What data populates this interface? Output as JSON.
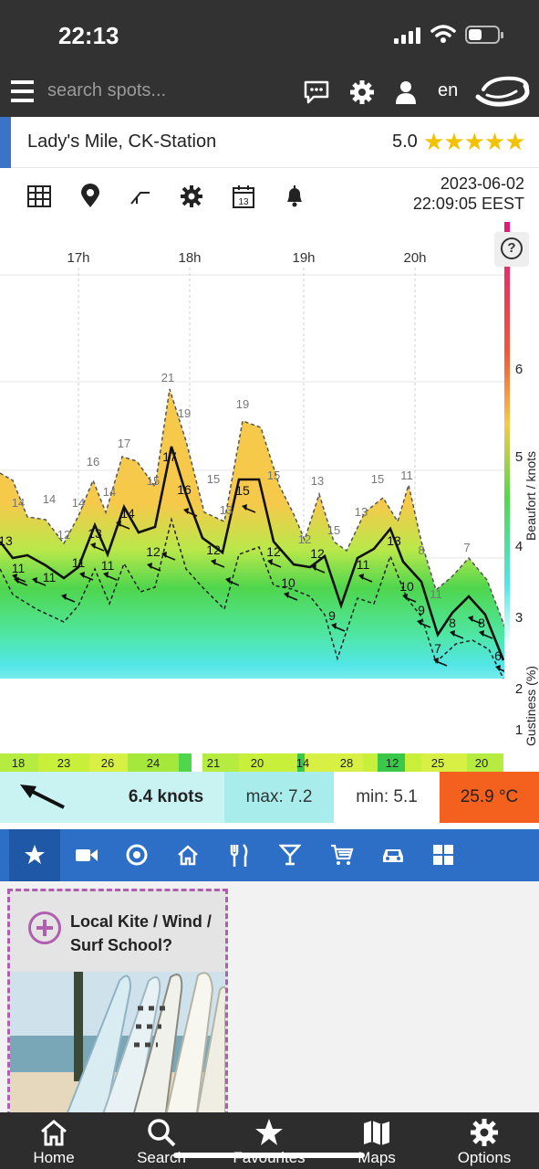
{
  "status": {
    "time": "22:13"
  },
  "header": {
    "search_placeholder": "search spots...",
    "language": "en"
  },
  "spot": {
    "name": "Lady's Mile, CK-Station",
    "rating": "5.0",
    "stars": "★★★★★"
  },
  "timestamp": {
    "date": "2023-06-02",
    "time": "22:09:05 EEST"
  },
  "chart_data": {
    "type": "area",
    "x_ticks": [
      "17h",
      "18h",
      "19h",
      "20h"
    ],
    "y_label_right": "Beaufort / knots",
    "y_label_gust": "Gustiness (%)",
    "beaufort_ticks": [
      "6",
      "5",
      "4",
      "3",
      "2",
      "1"
    ],
    "series": [
      {
        "name": "gust",
        "labels": [
          "14",
          "14",
          "14",
          "12",
          "16",
          "14",
          "17",
          "15",
          "21",
          "19",
          "15",
          "13",
          "19",
          "15",
          "13",
          "12",
          "15",
          "13",
          "15",
          "11",
          "8",
          "11",
          "7"
        ]
      },
      {
        "name": "mean",
        "labels": [
          "13",
          "11",
          "11",
          "11",
          "13",
          "11",
          "14",
          "12",
          "17",
          "16",
          "12",
          "15",
          "12",
          "10",
          "12",
          "11",
          "13",
          "10",
          "9",
          "8",
          "8",
          "6"
        ]
      },
      {
        "name": "lull",
        "labels": [
          "9",
          "7"
        ]
      }
    ],
    "gust_pct": [
      "18",
      "23",
      "26",
      "24",
      "21",
      "20",
      "14",
      "28",
      "12",
      "25",
      "20"
    ]
  },
  "stats": {
    "speed": "6.4 knots",
    "max": "max: 7.2",
    "min": "min: 5.1",
    "temp": "25.9 °C"
  },
  "categories": [
    "star-icon",
    "video-icon",
    "target-icon",
    "home-icon",
    "restaurant-icon",
    "bar-icon",
    "shop-icon",
    "car-icon",
    "grid-icon"
  ],
  "listing": {
    "card_text": "Local Kite / Wind / Surf School?"
  },
  "nav": {
    "home": "Home",
    "search": "Search",
    "favourites": "Favourites",
    "maps": "Maps",
    "options": "Options"
  },
  "colors": {
    "gust_high": "#f6c94b",
    "wind_green": "#39d04a",
    "wind_cyan": "#55e4e4",
    "accent": "#2d6fc6",
    "temp": "#f4601e"
  }
}
